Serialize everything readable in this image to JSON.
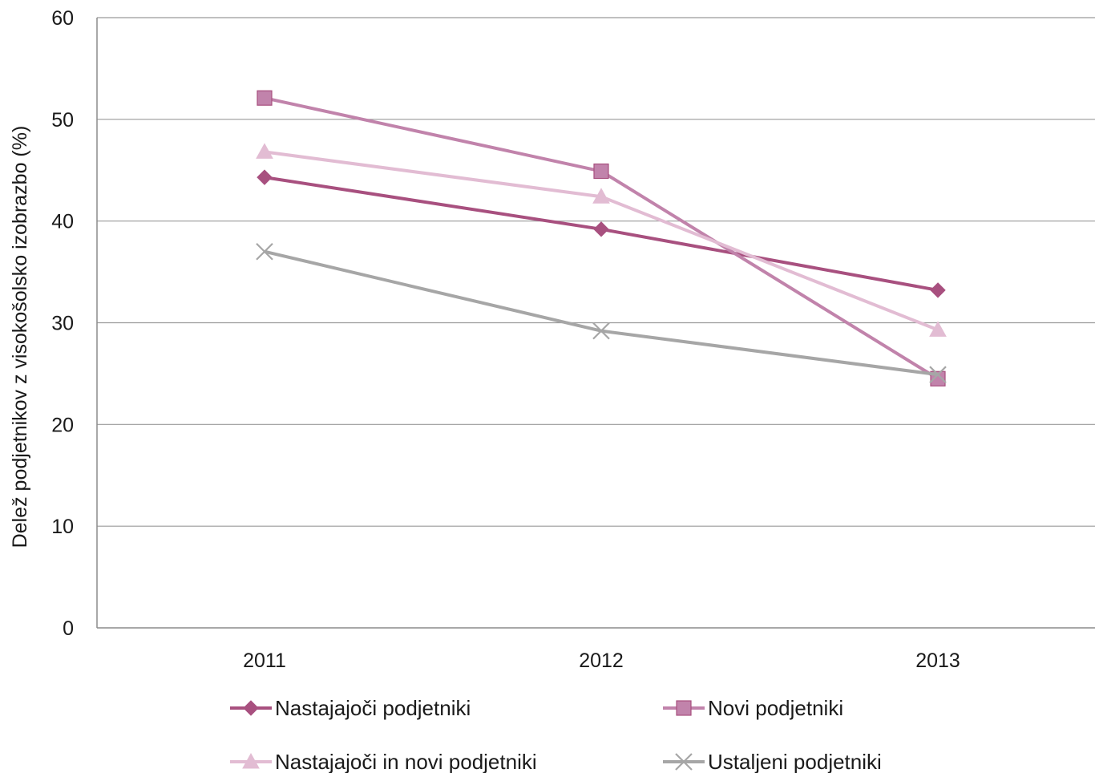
{
  "chart_data": {
    "type": "line",
    "categories": [
      "2011",
      "2012",
      "2013"
    ],
    "ylabel": "Delež podjetnikov z visokošolsko izobrazbo (%)",
    "xlabel": "",
    "ylim": [
      0,
      60
    ],
    "yticks": [
      0,
      10,
      20,
      30,
      40,
      50,
      60
    ],
    "grid": true,
    "legend_position": "bottom",
    "series": [
      {
        "name": "Nastajajoči podjetniki",
        "values": [
          44.3,
          39.2,
          33.2
        ],
        "color": "#a8507f",
        "marker": "diamond"
      },
      {
        "name": "Novi podjetniki",
        "values": [
          52.1,
          44.9,
          24.5
        ],
        "color": "#c183ab",
        "marker": "square"
      },
      {
        "name": "Nastajajoči in novi podjetniki",
        "values": [
          46.8,
          42.4,
          29.3
        ],
        "color": "#e2bcd3",
        "marker": "triangle"
      },
      {
        "name": "Ustaljeni podjetniki",
        "values": [
          37.0,
          29.2,
          24.9
        ],
        "color": "#a6a6a6",
        "marker": "x"
      }
    ]
  }
}
